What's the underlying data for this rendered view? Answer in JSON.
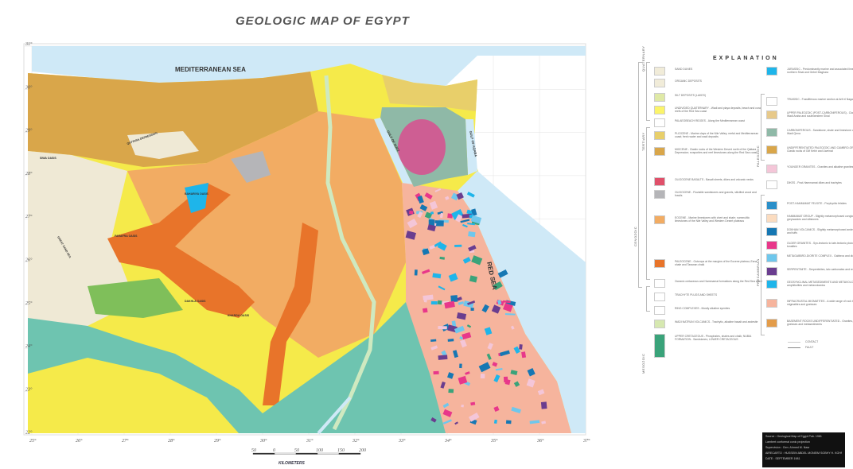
{
  "title": "GEOLOGIC MAP OF EGYPT",
  "map": {
    "labels": {
      "mediterranean": "MEDITERRANEAN SEA",
      "red_sea": "RED SEA",
      "gulf_suez": "GULF OF SUEZ",
      "gulf_aqaba": "GULF OF AQABA",
      "qattara": "QATTARA DEPRESSION",
      "siwa": "SIWA OASIS",
      "bahariya": "BAHARIYA OASIS",
      "farafra": "FARAFRA OASIS",
      "great_sand_sea": "GREAT SAND SEA",
      "dakhla": "DAKHLA OASIS",
      "kharga": "KHARGA OASIS"
    },
    "longitudes": [
      "25°",
      "26°",
      "27°",
      "28°",
      "29°",
      "30°",
      "31°",
      "32°",
      "33°",
      "34°",
      "35°",
      "36°",
      "37°"
    ],
    "latitudes": [
      "31°",
      "30°",
      "29°",
      "28°",
      "27°",
      "26°",
      "25°",
      "24°",
      "23°",
      "22°"
    ],
    "scale": {
      "ticks": [
        "50",
        "0",
        "50",
        "100",
        "150",
        "200"
      ],
      "unit": "KILOMETERS"
    },
    "colors": {
      "sea": "#cfe9f7",
      "sand_dunes": "#efe9d5",
      "miocene": "#d9a64a",
      "eocene": "#f2ac63",
      "paleocene": "#e8742a",
      "nubian": "#f5ea4a",
      "cretaceous_teal": "#6ec4b0",
      "green": "#7fbf5a",
      "basement_pink": "#e8378a",
      "basement_blue": "#1eb5ea",
      "oligocene_gray": "#b5b5b8"
    }
  },
  "legend": {
    "title": "EXPLANATION",
    "eras": {
      "quaternary": "QUATERNARY",
      "tertiary": "TERTIARY",
      "cenozoic": "CENOZOIC",
      "mesozoic": "MESOZOIC",
      "paleozoic": "PALEOZOIC",
      "precambrian": "PRECAMBRIAN"
    },
    "left": [
      {
        "label": "SAND DUNES",
        "color": "#f1ecd9"
      },
      {
        "label": "ORGANIC DEPOSITS",
        "color": "#f1ecd9"
      },
      {
        "label": "SILT DEPOSITS (LAKES)",
        "color": "#dfe9a6"
      },
      {
        "label": "UNDIVIDED QUATERNARY - Wadi and playa deposits, beach and coral reefs of the Red Sea coast",
        "color": "#fbf46a"
      },
      {
        "label": "PALAEOBEACH RIDGES - Along the Mediterranean coast",
        "color": "#ffffff"
      },
      {
        "label": "PLIOCENE - Marine clays of the Nile Valley; reefal and Mediterranean coast; fresh water and wadi deposits",
        "color": "#e8cf6a"
      },
      {
        "label": "MIOCENE - Clastic rocks of the Western Desert north of the Qattara Depression; evaporites and reef limestones along the Red Sea coast",
        "color": "#d9a64a"
      },
      {
        "label": "OLIGOCENE BASALTS - Basalt sheets, dikes and volcanic necks",
        "color": "#e0506a"
      },
      {
        "label": "OLIGOCENE - Fluviatile sandstones and gravels, silicified wood and fossils",
        "color": "#b5b5b8"
      },
      {
        "label": "EOCENE - Marine limestones with chert and shale; nummulitic limestones of the Nile Valley and Western Desert plateaus",
        "color": "#f2ac63"
      },
      {
        "label": "PALEOCENE - Outcrops at the margins of the Eocene plateau; Esna shale and Tarawan chalk",
        "color": "#e8742a"
      },
      {
        "label": "Oceanic cretaceous and Hammamat formations along the Red Sea coast",
        "color": "#ffffff"
      },
      {
        "label": "TRACHYTE PLUGS AND SHEETS",
        "color": "#ffffff"
      },
      {
        "label": "RING COMPLEXES - Mostly alkaline syenites",
        "color": "#ffffff"
      },
      {
        "label": "WADI NATRUN VOLCANICS - Trachytic, alkaline basalt and andesite",
        "color": "#d6e8b0"
      },
      {
        "label": "UPPER CRETACEOUS - Phosphates, shales and chalk; NUBIA FORMATION - Sandstones; LOWER CRETACEOUS",
        "color": "#3aa37a"
      }
    ],
    "right": [
      {
        "label": "JURASSIC - Predominantly marine and associated limestones of northern Sinai and Gebel Maghara",
        "color": "#1eb5ea"
      },
      {
        "label": "TRIASSIC - Fossiliferous marine section at Arif el Naga",
        "color": "#ffffff"
      },
      {
        "label": "UPPER PALEOZOIC (POST-CARBONIFEROUS) - Clastic section in Wadi Araba and southwestern Sinai",
        "color": "#e7c98a"
      },
      {
        "label": "CARBONIFEROUS - Sandstone, shale and limestone of Um Bogma and Wadi Qena",
        "color": "#8fb9a7"
      },
      {
        "label": "UNDIFFERENTIATED PALEOZOIC AND CAMBRO-ORDOVICIAN - Clastic rocks of Gilf Kebir and Uweinat",
        "color": "#d9a64a"
      },
      {
        "label": "YOUNGER GRANITES - Granites and alkaline granites, quartz syenites",
        "color": "#f4c6d8"
      },
      {
        "label": "DIKES - Post-Hammamat dikes and trachytes",
        "color": "#ffffff"
      },
      {
        "label": "POST-HAMMAMAT FELSITE - Porphyritic felsites",
        "color": "#2a8fc9"
      },
      {
        "label": "HAMMAMAT GROUP - Slightly metamorphosed conglomerates, greywackes and siltstones",
        "color": "#fbdcc0"
      },
      {
        "label": "DOKHAN VOLCANICS - Slightly metamorphosed andesites, porphyries and tuffs",
        "color": "#1677b3"
      },
      {
        "label": "OLDER GRANITES - Syn-tectonic to late-tectonic plutons, granodiorites, tonalites",
        "color": "#e8378a"
      },
      {
        "label": "METAGABBRO-DIORITE COMPLEX - Gabbros and diorites",
        "color": "#6fc7ec"
      },
      {
        "label": "SERPENTINITE - Serpentinites, talc carbonates and related rocks",
        "color": "#6a3d8f"
      },
      {
        "label": "GEOSYNCLINAL METASEDIMENTS AND METAVOLCANICS - Schists, amphibolites and metavolcanics",
        "color": "#1eb5ea"
      },
      {
        "label": "INFRACRUSTAL MIGMATITES - A wide range of rock types including migmatites and gneisses",
        "color": "#f6b49d"
      },
      {
        "label": "BASEMENT ROCKS UNDIFFERENTIATED - Granites, migmatites, gneisses and metasediments",
        "color": "#e39c4a"
      }
    ],
    "symbols": {
      "contact": "CONTACT",
      "fault": "FAULT"
    }
  },
  "info_box": {
    "source": "Source : Geological Map of Egypt  Pub. 1981",
    "projection": "Lambert conformal conic projection",
    "supervision": "Supervision : Gen. Ahmed M. Nasr",
    "airecarto": "AIRECARTO : HUSSEIN ABDEL MONEIM  SOBHY H. KOHNI",
    "date": "DATE : SEPTEMBER 1981"
  }
}
